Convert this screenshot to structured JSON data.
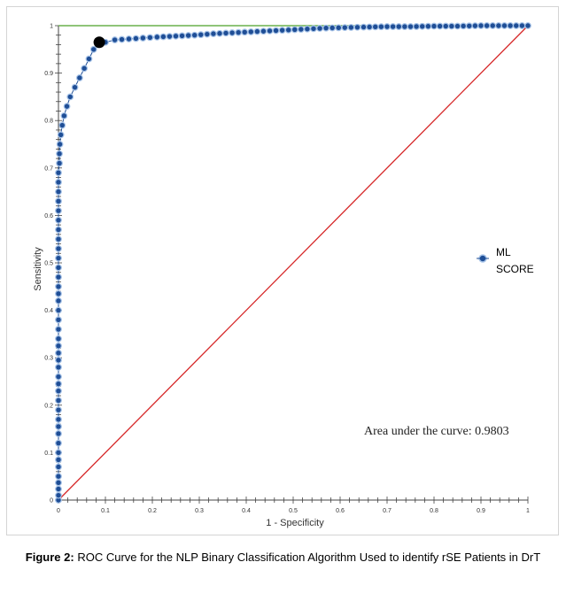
{
  "chart_data": {
    "type": "scatter",
    "xlabel": "1 - Specificity",
    "ylabel": "Sensitivity",
    "xlim": [
      0,
      1
    ],
    "ylim": [
      0,
      1
    ],
    "x_ticks": [
      "0",
      "0.1",
      "0.2",
      "0.3",
      "0.4",
      "0.5",
      "0.6",
      "0.7",
      "0.8",
      "0.9",
      "1"
    ],
    "y_ticks": [
      "0",
      "0.1",
      "0.2",
      "0.3",
      "0.4",
      "0.5",
      "0.6",
      "0.7",
      "0.8",
      "0.9",
      "1"
    ],
    "grid": false,
    "legend_position": "right",
    "series": [
      {
        "name": "ML SCORE",
        "color": "#1f4e96",
        "points": [
          [
            0,
            0
          ],
          [
            0,
            0.01
          ],
          [
            0,
            0.05
          ],
          [
            0,
            0.07
          ],
          [
            0,
            0.1
          ],
          [
            0,
            0.12
          ],
          [
            0,
            0.14
          ],
          [
            0,
            0.17
          ],
          [
            0,
            0.19
          ],
          [
            0,
            0.21
          ],
          [
            0,
            0.23
          ],
          [
            0,
            0.26
          ],
          [
            0,
            0.28
          ],
          [
            0,
            0.31
          ],
          [
            0,
            0.34
          ],
          [
            0,
            0.36
          ],
          [
            0,
            0.38
          ],
          [
            0,
            0.4
          ],
          [
            0,
            0.42
          ],
          [
            0,
            0.45
          ],
          [
            0,
            0.47
          ],
          [
            0,
            0.49
          ],
          [
            0,
            0.51
          ],
          [
            0,
            0.53
          ],
          [
            0,
            0.55
          ],
          [
            0,
            0.57
          ],
          [
            0,
            0.59
          ],
          [
            0,
            0.61
          ],
          [
            0,
            0.63
          ],
          [
            0,
            0.65
          ],
          [
            0,
            0.67
          ],
          [
            0,
            0.69
          ],
          [
            0.002,
            0.71
          ],
          [
            0.002,
            0.73
          ],
          [
            0.003,
            0.75
          ],
          [
            0.005,
            0.77
          ],
          [
            0.008,
            0.79
          ],
          [
            0.012,
            0.81
          ],
          [
            0.018,
            0.83
          ],
          [
            0.025,
            0.85
          ],
          [
            0.035,
            0.87
          ],
          [
            0.045,
            0.89
          ],
          [
            0.055,
            0.91
          ],
          [
            0.065,
            0.93
          ],
          [
            0.075,
            0.95
          ],
          [
            0.085,
            0.96
          ],
          [
            0.1,
            0.965
          ],
          [
            0.12,
            0.97
          ],
          [
            0.15,
            0.972
          ],
          [
            0.18,
            0.974
          ],
          [
            0.21,
            0.976
          ],
          [
            0.25,
            0.978
          ],
          [
            0.29,
            0.98
          ],
          [
            0.33,
            0.983
          ],
          [
            0.37,
            0.985
          ],
          [
            0.41,
            0.987
          ],
          [
            0.45,
            0.989
          ],
          [
            0.49,
            0.991
          ],
          [
            0.53,
            0.993
          ],
          [
            0.57,
            0.995
          ],
          [
            0.61,
            0.996
          ],
          [
            0.65,
            0.997
          ],
          [
            0.7,
            0.998
          ],
          [
            0.75,
            0.998
          ],
          [
            0.8,
            0.999
          ],
          [
            0.85,
            0.999
          ],
          [
            0.9,
            1
          ],
          [
            0.95,
            1
          ],
          [
            1,
            1
          ]
        ]
      }
    ],
    "highlight_point": [
      0.087,
      0.965
    ],
    "reference_lines": [
      {
        "kind": "diagonal",
        "color": "#d62728"
      },
      {
        "kind": "perfect",
        "color": "#6ab04c"
      }
    ],
    "annotation": "Area under the curve: 0.9803"
  },
  "caption": {
    "label": "Figure 2:",
    "text": "ROC Curve for the NLP Binary Classification Algorithm Used to identify rSE Patients in DrT"
  },
  "legend": {
    "line1": "ML",
    "line2": "SCORE"
  }
}
